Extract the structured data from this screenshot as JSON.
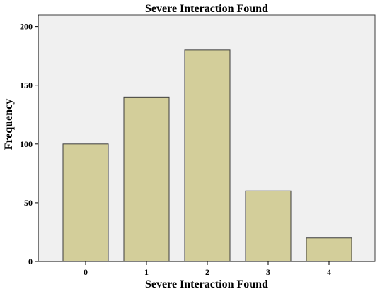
{
  "chart_data": {
    "type": "bar",
    "title": "Severe Interaction Found",
    "xlabel": "Severe Interaction Found",
    "ylabel": "Frequency",
    "categories": [
      "0",
      "1",
      "2",
      "3",
      "4"
    ],
    "values": [
      100,
      140,
      180,
      60,
      20
    ],
    "ylim": [
      0,
      210
    ],
    "yticks": [
      0,
      50,
      100,
      150,
      200
    ],
    "grid": false,
    "legend": "none",
    "colors": {
      "bar_fill": "#d3ce9a",
      "bar_stroke": "#3c3c3c",
      "plot_background": "#f0f0f0",
      "axis": "#000000"
    }
  }
}
